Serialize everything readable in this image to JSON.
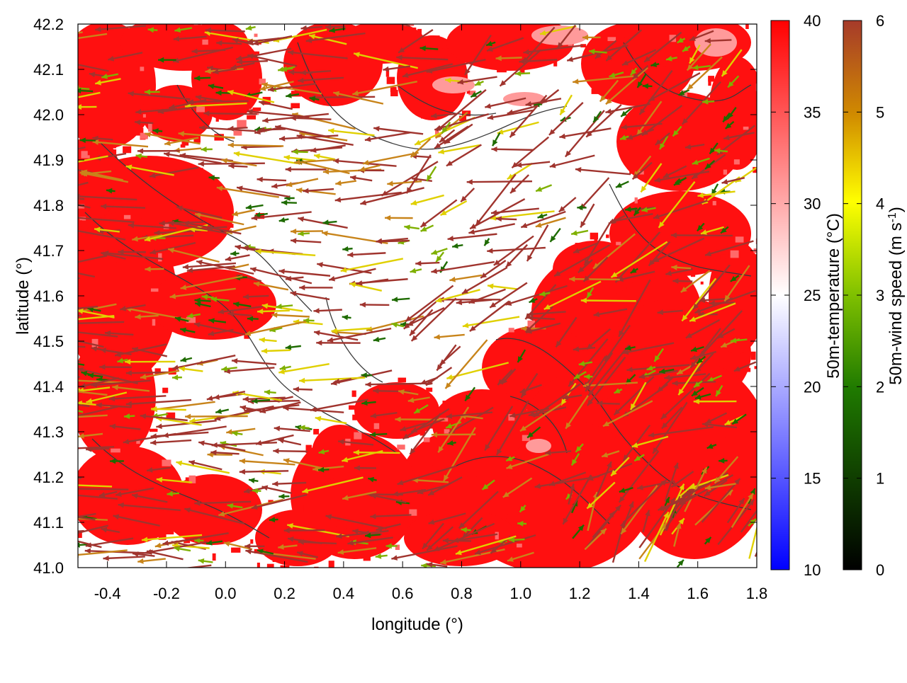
{
  "chart_data": {
    "type": "map",
    "x_axis": {
      "label": "longitude (°)",
      "range": [
        -0.5,
        1.8
      ],
      "ticks": [
        "-0.4",
        "-0.2",
        "0.0",
        "0.2",
        "0.4",
        "0.6",
        "0.8",
        "1.0",
        "1.2",
        "1.4",
        "1.6",
        "1.8"
      ]
    },
    "y_axis": {
      "label": "latitude (°)",
      "range": [
        41.0,
        42.2
      ],
      "ticks": [
        "41.0",
        "41.1",
        "41.2",
        "41.3",
        "41.4",
        "41.5",
        "41.6",
        "41.7",
        "41.8",
        "41.9",
        "42.0",
        "42.1",
        "42.2"
      ]
    },
    "temperature_colorbar": {
      "label": "50m-temperature (°C)",
      "range": [
        10,
        40
      ],
      "ticks": [
        "10",
        "15",
        "20",
        "25",
        "30",
        "35",
        "40"
      ],
      "colors": [
        "#0000ff",
        "#ffffff",
        "#ff0000"
      ]
    },
    "wind_colorbar": {
      "label_main": "50m-wind speed (m s",
      "label_sup": "-1",
      "label_end": ")",
      "range": [
        0,
        6
      ],
      "ticks": [
        "0",
        "1",
        "2",
        "3",
        "4",
        "5",
        "6"
      ],
      "colors": [
        "#000000",
        "#1f7a00",
        "#7fc000",
        "#ffff00",
        "#d08a00",
        "#a63a2a"
      ]
    },
    "field_colors": {
      "hot": "#ff1010",
      "warm": "#ff6a6a",
      "neutral": "#ffffff",
      "contour": "#3a3a3a"
    },
    "arrow_colors": [
      "#a0342e",
      "#a0342e",
      "#a0342e",
      "#a0342e",
      "#c8841a",
      "#e0d000",
      "#7fb000",
      "#1e6b00"
    ]
  }
}
